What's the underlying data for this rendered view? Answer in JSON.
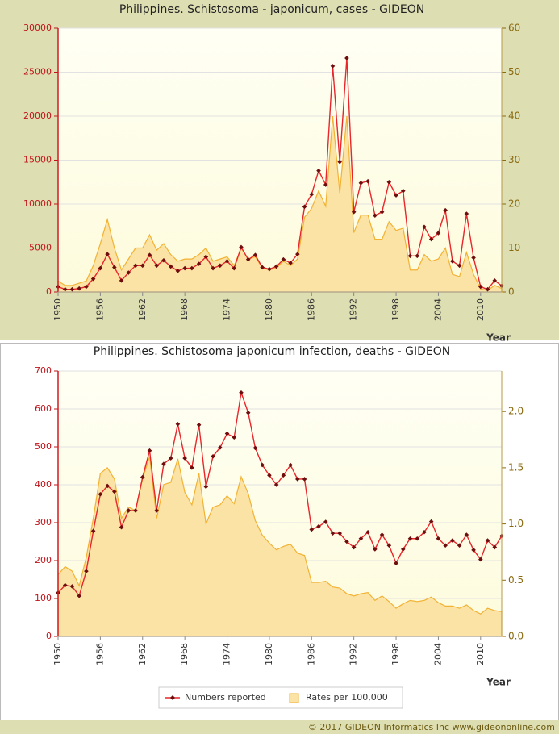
{
  "chart_data": [
    {
      "type": "line",
      "title": "Philippines. Schistosoma - japonicum, cases - GIDEON",
      "x_label": "Year",
      "x": [
        1950,
        1951,
        1952,
        1953,
        1954,
        1955,
        1956,
        1957,
        1958,
        1959,
        1960,
        1961,
        1962,
        1963,
        1964,
        1965,
        1966,
        1967,
        1968,
        1969,
        1970,
        1971,
        1972,
        1973,
        1974,
        1975,
        1976,
        1977,
        1978,
        1979,
        1980,
        1981,
        1982,
        1983,
        1984,
        1985,
        1986,
        1987,
        1988,
        1989,
        1990,
        1991,
        1992,
        1993,
        1994,
        1995,
        1996,
        1997,
        1998,
        1999,
        2000,
        2001,
        2002,
        2003,
        2004,
        2005,
        2006,
        2007,
        2008,
        2009,
        2010,
        2011,
        2012,
        2013
      ],
      "xlim": [
        1950,
        2013
      ],
      "xticks": [
        1950,
        1956,
        1962,
        1968,
        1974,
        1980,
        1986,
        1992,
        1998,
        2004,
        2010
      ],
      "ylim": [
        0,
        30000
      ],
      "yticks": [
        0,
        5000,
        10000,
        15000,
        20000,
        25000,
        30000
      ],
      "y2lim": [
        0,
        60
      ],
      "y2ticks": [
        0,
        10,
        20,
        30,
        40,
        50,
        60
      ],
      "grid": true,
      "series": [
        {
          "type": "line",
          "color": "#e8262b",
          "marker_color": "#6e0d0d",
          "values": [
            600,
            300,
            300,
            400,
            600,
            1500,
            2700,
            4300,
            2800,
            1300,
            2200,
            3000,
            3000,
            4200,
            3000,
            3600,
            2900,
            2400,
            2700,
            2700,
            3200,
            4000,
            2700,
            3000,
            3500,
            2700,
            5100,
            3700,
            4200,
            2800,
            2600,
            2900,
            3700,
            3300,
            4300,
            9700,
            11100,
            13800,
            12200,
            25700,
            14800,
            26600,
            9100,
            12400,
            12600,
            8700,
            9100,
            12500,
            11000,
            11500,
            4100,
            4100,
            7400,
            6000,
            6700,
            9300,
            3500,
            3000,
            8900,
            3900,
            600,
            300,
            1300,
            700
          ]
        },
        {
          "type": "area",
          "axis": "y2",
          "color": "#fbe3a6",
          "stroke": "#f2b233",
          "values": [
            2.5,
            1.5,
            1.5,
            2,
            2.5,
            6,
            11,
            16.5,
            10,
            5,
            7.5,
            10,
            10,
            13,
            9.5,
            11,
            8.5,
            7,
            7.5,
            7.5,
            8.5,
            10,
            7,
            7.5,
            8,
            6,
            10,
            7.5,
            8,
            5.5,
            5,
            5.5,
            7,
            6,
            7.5,
            17,
            19,
            23,
            19.5,
            40,
            22.5,
            40,
            13.5,
            17.5,
            17.5,
            12,
            12,
            16,
            14,
            14.5,
            5,
            5,
            8.5,
            7,
            7.5,
            10,
            4,
            3.5,
            9,
            4,
            0.7,
            0.4,
            1.5,
            0.8
          ]
        }
      ]
    },
    {
      "type": "line",
      "title": "Philippines. Schistosoma japonicum infection, deaths - GIDEON",
      "x_label": "Year",
      "x": [
        1950,
        1951,
        1952,
        1953,
        1954,
        1955,
        1956,
        1957,
        1958,
        1959,
        1960,
        1961,
        1962,
        1963,
        1964,
        1965,
        1966,
        1967,
        1968,
        1969,
        1970,
        1971,
        1972,
        1973,
        1974,
        1975,
        1976,
        1977,
        1978,
        1979,
        1980,
        1981,
        1982,
        1983,
        1984,
        1985,
        1986,
        1987,
        1988,
        1989,
        1990,
        1991,
        1992,
        1993,
        1994,
        1995,
        1996,
        1997,
        1998,
        1999,
        2000,
        2001,
        2002,
        2003,
        2004,
        2005,
        2006,
        2007,
        2008,
        2009,
        2010,
        2011,
        2012,
        2013
      ],
      "xlim": [
        1950,
        2013
      ],
      "xticks": [
        1950,
        1956,
        1962,
        1968,
        1974,
        1980,
        1986,
        1992,
        1998,
        2004,
        2010
      ],
      "ylim": [
        0,
        700
      ],
      "yticks": [
        0,
        100,
        200,
        300,
        400,
        500,
        600,
        700
      ],
      "y2lim": [
        0,
        2.36
      ],
      "y2ticks": [
        {
          "value": 0,
          "label": "0.0"
        },
        0.5,
        {
          "value": 1,
          "label": "1.0"
        },
        1.5,
        {
          "value": 2,
          "label": "2.0"
        }
      ],
      "grid": true,
      "legend": "bottom",
      "series": [
        {
          "type": "line",
          "name": "Numbers reported",
          "color": "#e8262b",
          "marker_color": "#6e0d0d",
          "values": [
            115,
            135,
            132,
            107,
            172,
            278,
            375,
            397,
            382,
            288,
            332,
            332,
            420,
            490,
            332,
            455,
            470,
            560,
            470,
            445,
            558,
            395,
            475,
            498,
            535,
            525,
            643,
            590,
            497,
            452,
            425,
            400,
            425,
            452,
            415,
            415,
            282,
            290,
            302,
            272,
            272,
            250,
            235,
            258,
            275,
            230,
            268,
            240,
            193,
            230,
            258,
            258,
            275,
            303,
            258,
            240,
            253,
            240,
            268,
            228,
            203,
            253,
            235,
            265
          ]
        },
        {
          "type": "area",
          "name": "Rates per 100,000",
          "axis": "y2",
          "color": "#fbe3a6",
          "stroke": "#f2b233",
          "values": [
            0.55,
            0.62,
            0.58,
            0.45,
            0.7,
            1.05,
            1.45,
            1.5,
            1.4,
            1.05,
            1.15,
            1.12,
            1.4,
            1.6,
            1.05,
            1.35,
            1.37,
            1.58,
            1.28,
            1.17,
            1.45,
            1.0,
            1.15,
            1.17,
            1.25,
            1.18,
            1.42,
            1.27,
            1.03,
            0.9,
            0.83,
            0.77,
            0.8,
            0.82,
            0.74,
            0.72,
            0.48,
            0.48,
            0.49,
            0.44,
            0.43,
            0.38,
            0.36,
            0.38,
            0.39,
            0.32,
            0.36,
            0.31,
            0.25,
            0.29,
            0.32,
            0.31,
            0.32,
            0.35,
            0.3,
            0.27,
            0.27,
            0.25,
            0.28,
            0.23,
            0.2,
            0.25,
            0.23,
            0.22
          ]
        }
      ]
    }
  ],
  "footer": "© 2017 GIDEON Informatics Inc www.gideononline.com"
}
